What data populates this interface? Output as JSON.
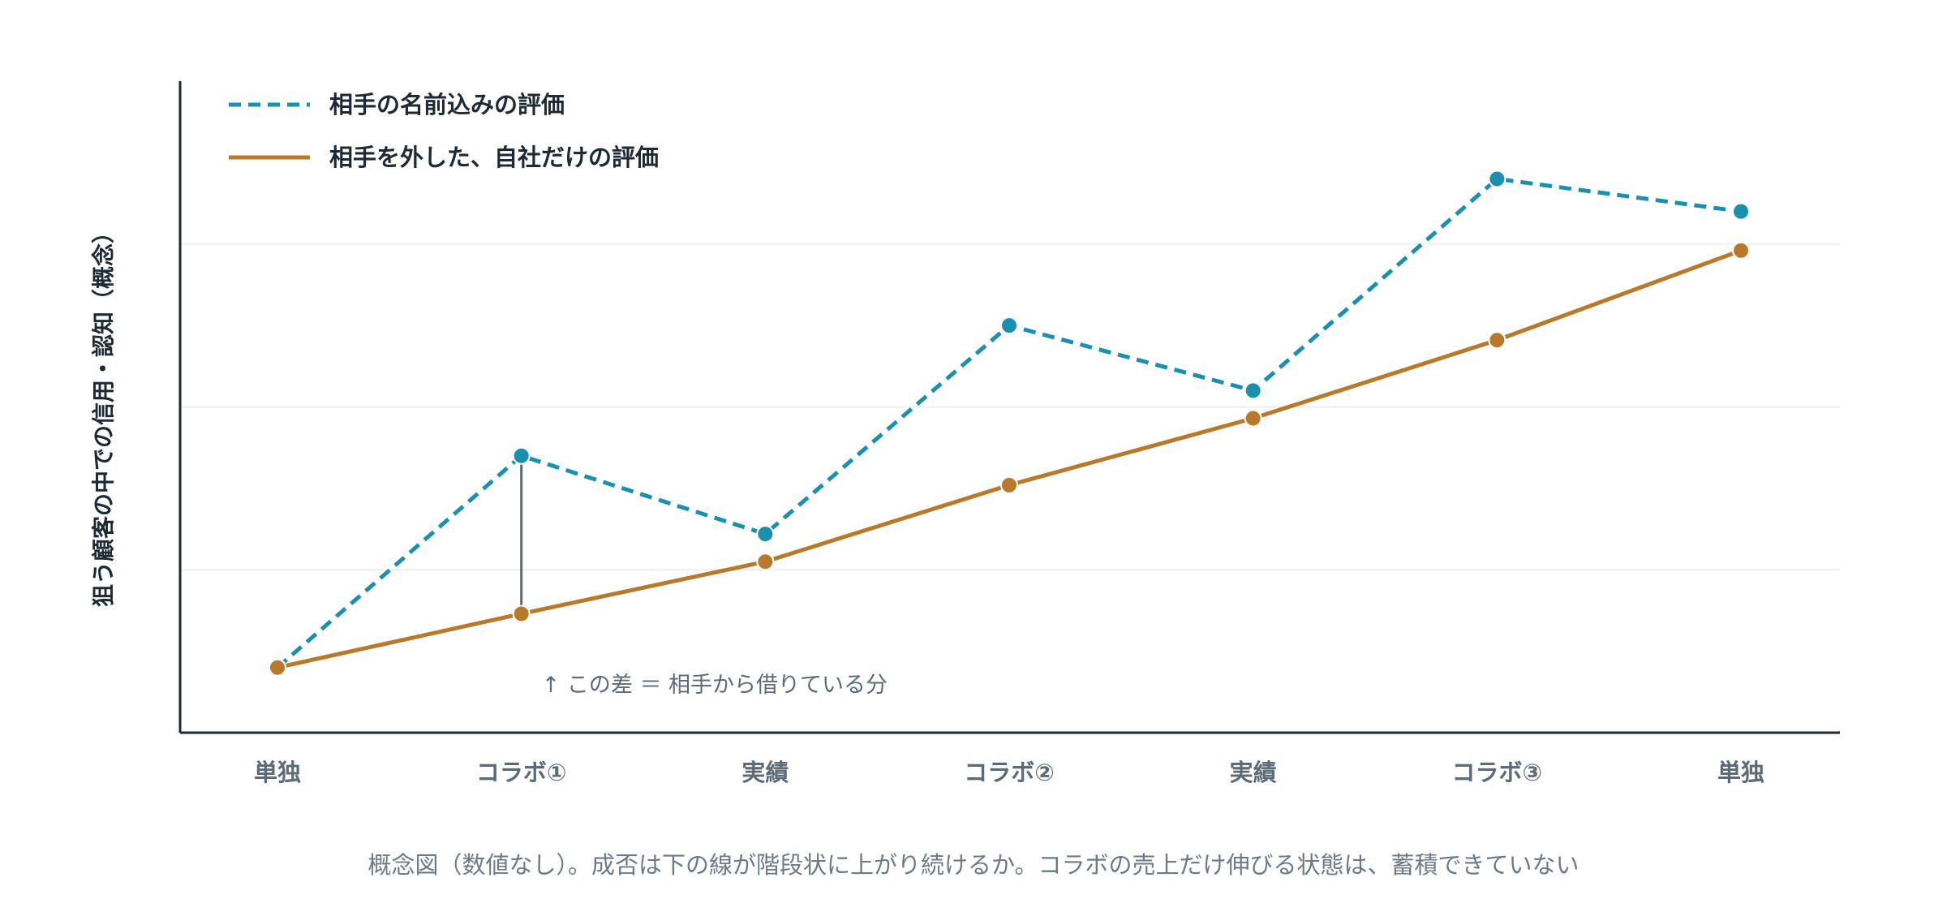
{
  "chart_data": {
    "type": "line",
    "title": "",
    "xlabel": "",
    "ylabel": "狙う顧客の中での信用・認知（概念）",
    "categories": [
      "単独",
      "コラボ①",
      "実績",
      "コラボ②",
      "実績",
      "コラボ③",
      "単独"
    ],
    "ylim": [
      0,
      4
    ],
    "ytick_values": [
      1,
      2,
      3
    ],
    "y_tick_labels_shown": false,
    "grid": "horizontal",
    "legend_position": "top-left",
    "series": [
      {
        "name": "相手の名前込みの評価",
        "style": "dashed",
        "color": "#1b8fae",
        "values": [
          0.4,
          1.7,
          1.22,
          2.5,
          2.1,
          3.4,
          3.2
        ]
      },
      {
        "name": "相手を外した、自社だけの評価",
        "style": "solid",
        "color": "#b87a2a",
        "values": [
          0.4,
          0.73,
          1.05,
          1.52,
          1.93,
          2.41,
          2.96
        ]
      }
    ],
    "annotation": {
      "text": "↑ この差 ＝ 相手から借りている分",
      "category_index": 1
    },
    "caption": "概念図（数値なし）。成否は下の線が階段状に上がり続けるか。コラボの売上だけ伸びる状態は、蓄積できていない"
  },
  "colors": {
    "axis": "#1e2a33",
    "grid": "#eeeeee",
    "tick_text": "#5d6b76",
    "caption_text": "#6b7a86",
    "legend_text": "#1e2a33",
    "annotation_line": "#5d6b76",
    "point_stroke": "#ffffff"
  }
}
